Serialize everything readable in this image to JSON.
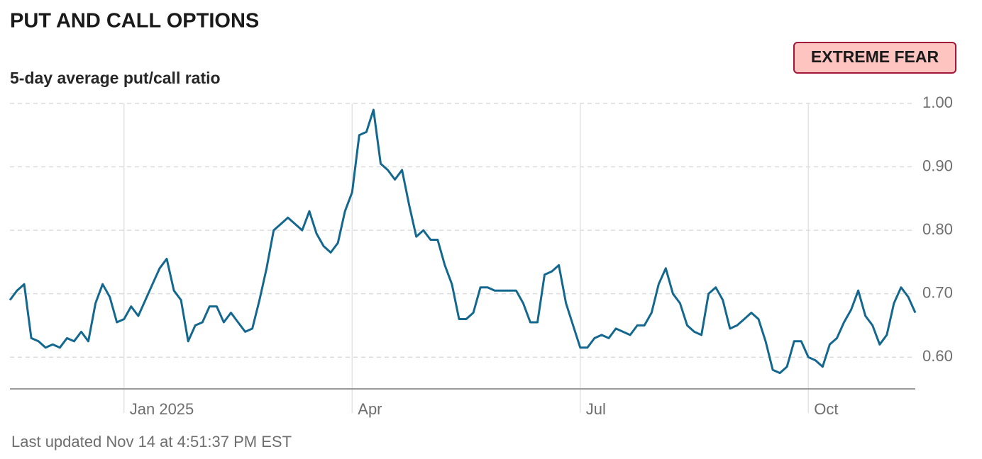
{
  "chart_data": {
    "type": "line",
    "title": "PUT AND CALL OPTIONS",
    "subtitle": "5-day average put/call ratio",
    "badge": "EXTREME FEAR",
    "footer": "Last updated Nov 14 at 4:51:37 PM EST",
    "color": "#14688f",
    "grid": true,
    "ylim": [
      0.55,
      1.0
    ],
    "yticks": [
      {
        "value": 0.6,
        "label": "0.60"
      },
      {
        "value": 0.7,
        "label": "0.70"
      },
      {
        "value": 0.8,
        "label": "0.80"
      },
      {
        "value": 0.9,
        "label": "0.90"
      },
      {
        "value": 1.0,
        "label": "1.00"
      }
    ],
    "categories": [
      null,
      null,
      null,
      null,
      null,
      null,
      null,
      null,
      null,
      null,
      null,
      null,
      null,
      null,
      null,
      null,
      "Jan 2025",
      null,
      null,
      null,
      null,
      null,
      null,
      null,
      null,
      null,
      null,
      null,
      null,
      null,
      null,
      null,
      null,
      null,
      null,
      null,
      null,
      null,
      null,
      null,
      null,
      null,
      null,
      null,
      null,
      null,
      null,
      null,
      "Apr",
      null,
      null,
      null,
      null,
      null,
      null,
      null,
      null,
      null,
      null,
      null,
      null,
      null,
      null,
      null,
      null,
      null,
      null,
      null,
      null,
      null,
      null,
      null,
      null,
      null,
      null,
      null,
      null,
      null,
      null,
      null,
      "Jul",
      null,
      null,
      null,
      null,
      null,
      null,
      null,
      null,
      null,
      null,
      null,
      null,
      null,
      null,
      null,
      null,
      null,
      null,
      null,
      null,
      null,
      null,
      null,
      null,
      null,
      null,
      null,
      null,
      null,
      null,
      null,
      "Oct",
      null,
      null,
      null,
      null,
      null,
      null,
      null,
      null,
      null,
      null,
      null,
      null,
      null,
      null,
      null
    ],
    "values": [
      0.69,
      0.705,
      0.715,
      0.63,
      0.625,
      0.615,
      0.62,
      0.615,
      0.63,
      0.625,
      0.64,
      0.625,
      0.685,
      0.715,
      0.695,
      0.655,
      0.66,
      0.68,
      0.665,
      0.69,
      0.715,
      0.74,
      0.755,
      0.705,
      0.69,
      0.625,
      0.65,
      0.655,
      0.68,
      0.68,
      0.655,
      0.67,
      0.655,
      0.64,
      0.645,
      0.69,
      0.74,
      0.8,
      0.81,
      0.82,
      0.81,
      0.8,
      0.83,
      0.795,
      0.775,
      0.765,
      0.78,
      0.83,
      0.86,
      0.95,
      0.955,
      0.99,
      0.905,
      0.895,
      0.88,
      0.895,
      0.84,
      0.79,
      0.8,
      0.785,
      0.785,
      0.745,
      0.715,
      0.66,
      0.66,
      0.67,
      0.71,
      0.71,
      0.705,
      0.705,
      0.705,
      0.705,
      0.685,
      0.655,
      0.655,
      0.73,
      0.735,
      0.745,
      0.685,
      0.65,
      0.615,
      0.615,
      0.63,
      0.635,
      0.63,
      0.645,
      0.64,
      0.635,
      0.65,
      0.65,
      0.67,
      0.715,
      0.74,
      0.7,
      0.685,
      0.65,
      0.64,
      0.635,
      0.7,
      0.71,
      0.69,
      0.645,
      0.65,
      0.66,
      0.67,
      0.66,
      0.625,
      0.58,
      0.575,
      0.585,
      0.625,
      0.625,
      0.6,
      0.595,
      0.585,
      0.62,
      0.63,
      0.655,
      0.675,
      0.705,
      0.665,
      0.65,
      0.62,
      0.635,
      0.685,
      0.71,
      0.695,
      0.67
    ]
  }
}
